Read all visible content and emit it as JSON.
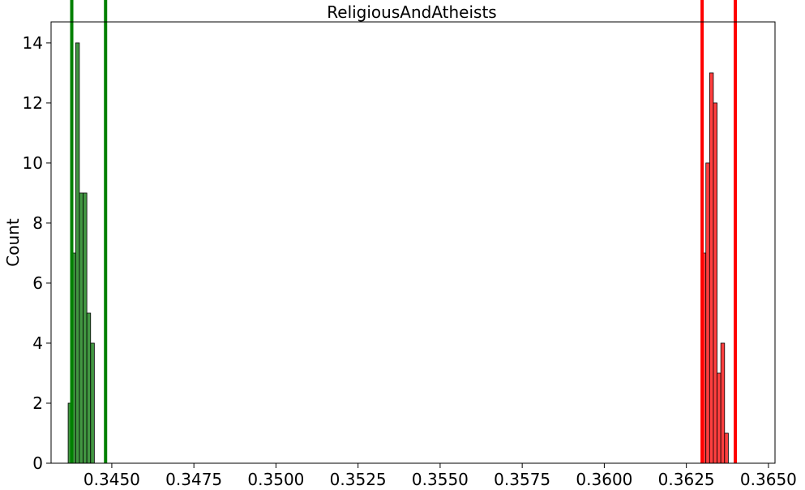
{
  "chart_data": {
    "type": "bar",
    "title": "ReligiousAndAtheists",
    "xlabel": "",
    "ylabel": "Count",
    "xlim": [
      0.34315,
      0.3652
    ],
    "ylim": [
      0,
      14.7
    ],
    "grid": false,
    "x_ticks": [
      {
        "value": 0.345,
        "label": "0.3450"
      },
      {
        "value": 0.3475,
        "label": "0.3475"
      },
      {
        "value": 0.35,
        "label": "0.3500"
      },
      {
        "value": 0.3525,
        "label": "0.3525"
      },
      {
        "value": 0.355,
        "label": "0.3550"
      },
      {
        "value": 0.3575,
        "label": "0.3575"
      },
      {
        "value": 0.36,
        "label": "0.3600"
      },
      {
        "value": 0.3625,
        "label": "0.3625"
      },
      {
        "value": 0.365,
        "label": "0.3650"
      }
    ],
    "y_ticks": [
      {
        "value": 0,
        "label": "0"
      },
      {
        "value": 2,
        "label": "2"
      },
      {
        "value": 4,
        "label": "4"
      },
      {
        "value": 6,
        "label": "6"
      },
      {
        "value": 8,
        "label": "8"
      },
      {
        "value": 10,
        "label": "10"
      },
      {
        "value": 12,
        "label": "12"
      },
      {
        "value": 14,
        "label": "14"
      }
    ],
    "series": [
      {
        "color": "#2e8b2e",
        "bin_start": 0.34367,
        "bin_width": 0.000114,
        "values": [
          2,
          7,
          14,
          9,
          9,
          5,
          4
        ]
      },
      {
        "color": "#ff2a2a",
        "bin_start": 0.36298,
        "bin_width": 0.000114,
        "values": [
          7,
          10,
          13,
          12,
          3,
          4,
          1
        ]
      }
    ],
    "vlines": [
      {
        "x": 0.34378,
        "color": "#008000"
      },
      {
        "x": 0.34481,
        "color": "#008000"
      },
      {
        "x": 0.36298,
        "color": "#ff0000"
      },
      {
        "x": 0.36399,
        "color": "#ff0000"
      }
    ]
  }
}
